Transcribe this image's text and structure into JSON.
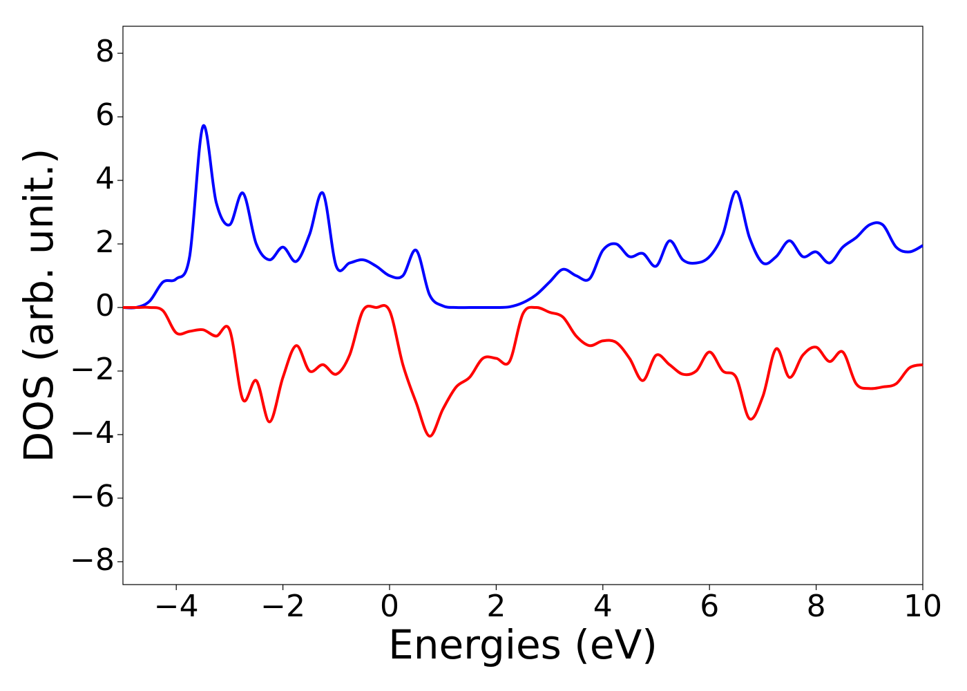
{
  "chart_data": {
    "type": "line",
    "xlabel": "Energies (eV)",
    "ylabel": "DOS (arb. unit.)",
    "x": [
      -5,
      -4.75,
      -4.5,
      -4.25,
      -4,
      -3.75,
      -3.5,
      -3.25,
      -3,
      -2.75,
      -2.5,
      -2.25,
      -2,
      -1.75,
      -1.5,
      -1.25,
      -1,
      -0.75,
      -0.5,
      -0.25,
      0,
      0.25,
      0.5,
      0.75,
      1,
      1.25,
      1.5,
      1.75,
      2,
      2.25,
      2.5,
      2.75,
      3,
      3.25,
      3.5,
      3.75,
      4,
      4.25,
      4.5,
      4.75,
      5,
      5.25,
      5.5,
      5.75,
      6,
      6.25,
      6.5,
      6.75,
      7,
      7.25,
      7.5,
      7.75,
      8,
      8.25,
      8.5,
      8.75,
      9,
      9.25,
      9.5,
      9.75,
      10
    ],
    "series": [
      {
        "color": "#0000ff",
        "values": [
          0,
          0,
          0.2,
          0.8,
          0.9,
          1.6,
          5.7,
          3.3,
          2.6,
          3.6,
          2.0,
          1.5,
          1.9,
          1.45,
          2.3,
          3.6,
          1.3,
          1.4,
          1.5,
          1.3,
          1.0,
          1.0,
          1.8,
          0.4,
          0.05,
          0,
          0,
          0,
          0,
          0.02,
          0.15,
          0.4,
          0.8,
          1.2,
          1.0,
          0.9,
          1.8,
          2.0,
          1.6,
          1.7,
          1.3,
          2.1,
          1.5,
          1.4,
          1.6,
          2.3,
          3.65,
          2.2,
          1.4,
          1.6,
          2.1,
          1.6,
          1.75,
          1.4,
          1.9,
          2.2,
          2.6,
          2.6,
          1.9,
          1.75,
          1.95
        ]
      },
      {
        "color": "#ff0000",
        "values": [
          0,
          0,
          0,
          -0.1,
          -0.8,
          -0.75,
          -0.7,
          -0.9,
          -0.7,
          -2.9,
          -2.3,
          -3.6,
          -2.2,
          -1.2,
          -2.0,
          -1.8,
          -2.1,
          -1.5,
          -0.1,
          0,
          -0.1,
          -1.8,
          -3.0,
          -4.05,
          -3.2,
          -2.5,
          -2.2,
          -1.6,
          -1.6,
          -1.7,
          -0.2,
          0,
          -0.15,
          -0.3,
          -0.9,
          -1.2,
          -1.05,
          -1.1,
          -1.6,
          -2.3,
          -1.5,
          -1.8,
          -2.1,
          -2.0,
          -1.4,
          -2.0,
          -2.2,
          -3.5,
          -2.8,
          -1.3,
          -2.2,
          -1.5,
          -1.25,
          -1.7,
          -1.4,
          -2.4,
          -2.55,
          -2.5,
          -2.4,
          -1.9,
          -1.8
        ]
      }
    ],
    "xlim": [
      -5,
      10
    ],
    "xticks": [
      {
        "value": -4,
        "label": "−4"
      },
      {
        "value": -2,
        "label": "−2"
      },
      0,
      2,
      4,
      6,
      8,
      10
    ],
    "ylim": [
      -8.72,
      8.85
    ],
    "yticks": [
      {
        "value": -8,
        "label": "−8"
      },
      {
        "value": -6,
        "label": "−6"
      },
      {
        "value": -4,
        "label": "−4"
      },
      {
        "value": -2,
        "label": "−2"
      },
      0,
      2,
      4,
      6,
      8
    ],
    "grid": false
  }
}
